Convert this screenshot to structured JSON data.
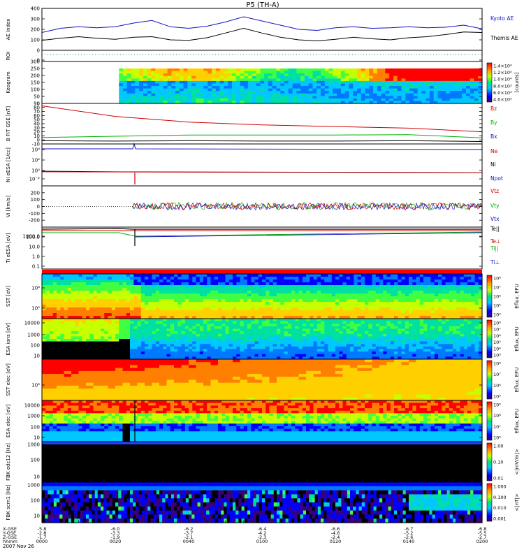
{
  "title": "P5 (TH-A)",
  "date_label": "2007 Nov 26",
  "colors": {
    "blue": "#1010c8",
    "black": "#000000",
    "red": "#d00000",
    "green": "#00b000",
    "teal": "#009090"
  },
  "chart_data": [
    {
      "type": "line",
      "panel": "ae",
      "ylabel": "AE Index",
      "ylim": [
        0,
        400
      ],
      "yticks": [
        "0",
        "100",
        "200",
        "300",
        "400"
      ],
      "x": [
        0,
        5,
        10,
        15,
        20,
        25,
        30,
        35,
        40,
        45,
        50,
        55,
        60,
        65,
        70,
        75,
        80,
        85,
        90,
        95,
        100,
        105,
        110,
        115,
        120
      ],
      "series": [
        {
          "name": "Kyoto AE",
          "values": [
            170,
            210,
            225,
            215,
            225,
            260,
            285,
            225,
            210,
            230,
            270,
            320,
            280,
            240,
            200,
            190,
            215,
            225,
            210,
            215,
            225,
            215,
            220,
            240,
            205
          ]
        },
        {
          "name": "Themis AE",
          "values": [
            95,
            115,
            130,
            115,
            105,
            125,
            130,
            100,
            95,
            120,
            165,
            210,
            165,
            125,
            100,
            90,
            105,
            125,
            110,
            100,
            120,
            130,
            150,
            175,
            170
          ]
        }
      ]
    },
    {
      "type": "line",
      "panel": "roi",
      "ylabel": "ROI",
      "ylim": [
        0,
        1
      ],
      "yticks": [
        "0"
      ],
      "series": [
        {
          "values": [
            0
          ]
        }
      ]
    },
    {
      "type": "heatmap",
      "panel": "keogram",
      "ylabel": "Keogram",
      "ylim": [
        0,
        300
      ],
      "yticks": [
        "0",
        "50",
        "100",
        "150",
        "200",
        "250",
        "300"
      ],
      "data_start_x": 21,
      "colorbar": {
        "label": "[counts]",
        "ticks": [
          "1.4×10⁴",
          "1.2×10⁴",
          "1.0×10⁴",
          "8.0×10³",
          "6.0×10³",
          "4.0×10³"
        ]
      }
    },
    {
      "type": "line",
      "panel": "bfield",
      "ylabel": "B FIT GSE [nT]",
      "ylim": [
        -10,
        90
      ],
      "yticks": [
        "-10",
        "0",
        "10",
        "20",
        "30",
        "40",
        "50",
        "60",
        "70",
        "80",
        "90"
      ],
      "x": [
        0,
        20,
        40,
        60,
        80,
        100,
        120
      ],
      "series": [
        {
          "name": "Bz",
          "values": [
            84,
            58,
            44,
            37,
            33,
            29,
            20
          ]
        },
        {
          "name": "By",
          "values": [
            6,
            9,
            12,
            12,
            12,
            13,
            5
          ]
        },
        {
          "name": "Bx",
          "values": [
            -2,
            -3,
            -2,
            -3,
            -3,
            -2,
            -4
          ]
        }
      ]
    },
    {
      "type": "line",
      "panel": "density",
      "ylabel": "Ni eESA [1/cc]",
      "yticks": [
        "10⁻²",
        "10⁰",
        "10²",
        "10⁴"
      ],
      "series": [
        {
          "name": "Ne"
        },
        {
          "name": "Ni"
        },
        {
          "name": "Npot"
        }
      ]
    },
    {
      "type": "line",
      "panel": "velocity",
      "ylabel": "Vi [km/s]",
      "ylim": [
        -300,
        300
      ],
      "yticks": [
        "-200",
        "-100",
        "0",
        "100",
        "200"
      ],
      "series": [
        {
          "name": "Vtz"
        },
        {
          "name": "Vty"
        },
        {
          "name": "Vtx"
        }
      ]
    },
    {
      "type": "line",
      "panel": "temperature",
      "ylabel": "Ti eESA [eV]",
      "yticks": [
        "0.1",
        "1.0",
        "10.0",
        "100.0",
        "1000.0"
      ],
      "series": [
        {
          "name": "Te||"
        },
        {
          "name": "Te⊥"
        },
        {
          "name": "Ti||"
        },
        {
          "name": "Ti⊥"
        }
      ]
    },
    {
      "type": "heatmap",
      "panel": "sst_ion",
      "ylabel": "SST [eV]",
      "yticks": [
        "10⁶",
        "10⁵"
      ],
      "colorbar": {
        "label": "Eflux, EFU",
        "ticks": [
          "10⁸",
          "10⁷",
          "10⁶",
          "10⁵",
          "10⁴"
        ]
      }
    },
    {
      "type": "heatmap",
      "panel": "esa_ion",
      "ylabel": "ESA ions [eV]",
      "yticks": [
        "10000",
        "1000",
        "100",
        "10"
      ],
      "colorbar": {
        "label": "Eflux, EFU",
        "ticks": [
          "10⁸",
          "10⁷",
          "10⁶",
          "10⁵",
          "10⁴",
          "10³"
        ]
      }
    },
    {
      "type": "heatmap",
      "panel": "sst_elec",
      "ylabel": "SST elec [eV]",
      "yticks": [
        "10⁵"
      ],
      "colorbar": {
        "label": "Eflux, EFU",
        "ticks": [
          "10⁸",
          "10⁷",
          "10⁶",
          "10⁵"
        ]
      }
    },
    {
      "type": "heatmap",
      "panel": "esa_elec",
      "ylabel": "ESA elec [eV]",
      "yticks": [
        "10000",
        "1000",
        "100",
        "10"
      ],
      "colorbar": {
        "label": "Eflux, EFU",
        "ticks": [
          "10⁹",
          "10⁸",
          "10⁷",
          "10⁶"
        ]
      }
    },
    {
      "type": "heatmap",
      "panel": "fbk_e",
      "ylabel": "FBK edc12 [Hz]",
      "yticks": [
        "1000",
        "100",
        "10"
      ],
      "colorbar": {
        "label": "<|mV/m|>",
        "ticks": [
          "1.00",
          "0.10",
          "0.01"
        ]
      }
    },
    {
      "type": "heatmap",
      "panel": "fbk_b",
      "ylabel": "FBK scm1 [Hz]",
      "yticks": [
        "1000",
        "100",
        "10"
      ],
      "colorbar": {
        "label": "<|nT|>",
        "ticks": [
          "1.000",
          "0.100",
          "0.010",
          "0.001"
        ]
      }
    }
  ],
  "xaxis": {
    "row_labels": [
      "X-GSE",
      "Y-GSE",
      "Z-GSE",
      "hhmm"
    ],
    "columns": [
      {
        "x": "-5.8",
        "y": "-2.8",
        "z": "-1.7",
        "time": "0000"
      },
      {
        "x": "-6.0",
        "y": "-3.3",
        "z": "-1.9",
        "time": "0020"
      },
      {
        "x": "-6.2",
        "y": "-3.7",
        "z": "-2.1",
        "time": "0040"
      },
      {
        "x": "-6.4",
        "y": "-4.2",
        "z": "-2.3",
        "time": "0100"
      },
      {
        "x": "-6.6",
        "y": "-4.6",
        "z": "-2.4",
        "time": "0120"
      },
      {
        "x": "-6.7",
        "y": "-5.2",
        "z": "-2.6",
        "time": "0140"
      },
      {
        "x": "-6.8",
        "y": "-5.5",
        "z": "-2.7",
        "time": "0200"
      }
    ]
  }
}
